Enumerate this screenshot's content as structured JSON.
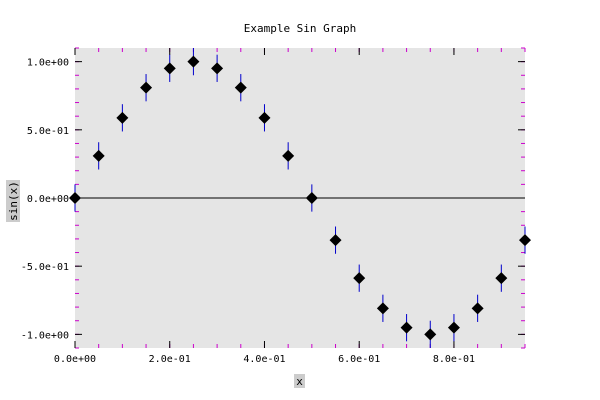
{
  "chart_data": {
    "type": "scatter",
    "title": "Example Sin Graph",
    "xlabel": "x",
    "ylabel": "sin(x)",
    "xlim": [
      0.0,
      0.95
    ],
    "ylim": [
      -1.1,
      1.1
    ],
    "x_ticks": [
      {
        "value": 0.0,
        "label": "0.0e+00"
      },
      {
        "value": 0.2,
        "label": "2.0e-01"
      },
      {
        "value": 0.4,
        "label": "4.0e-01"
      },
      {
        "value": 0.6,
        "label": "6.0e-01"
      },
      {
        "value": 0.8,
        "label": "8.0e-01"
      }
    ],
    "y_ticks": [
      {
        "value": 1.0,
        "label": "1.0e+00"
      },
      {
        "value": 0.5,
        "label": "5.0e-01"
      },
      {
        "value": 0.0,
        "label": "0.0e+00"
      },
      {
        "value": -0.5,
        "label": "-5.0e-01"
      },
      {
        "value": -1.0,
        "label": "-1.0e+00"
      }
    ],
    "x_minor_step": 0.05,
    "y_minor_step": 0.1,
    "grid": false,
    "zero_line": true,
    "error": 0.1,
    "x": [
      0.0,
      0.05,
      0.1,
      0.15,
      0.2,
      0.25,
      0.3,
      0.35,
      0.4,
      0.45,
      0.5,
      0.55,
      0.6,
      0.65,
      0.7,
      0.75,
      0.8,
      0.85,
      0.9,
      0.95
    ],
    "y": [
      0.0,
      0.309,
      0.588,
      0.809,
      0.951,
      1.0,
      0.951,
      0.809,
      0.588,
      0.309,
      0.0,
      -0.309,
      -0.588,
      -0.809,
      -0.951,
      -1.0,
      -0.951,
      -0.809,
      -0.588,
      -0.309
    ],
    "colors": {
      "plot_background": "#e5e5e5",
      "marker": "#000000",
      "error_bar": "#0000cc",
      "minor_tick": "#cc00cc",
      "label_highlight": "#cccccc"
    }
  }
}
